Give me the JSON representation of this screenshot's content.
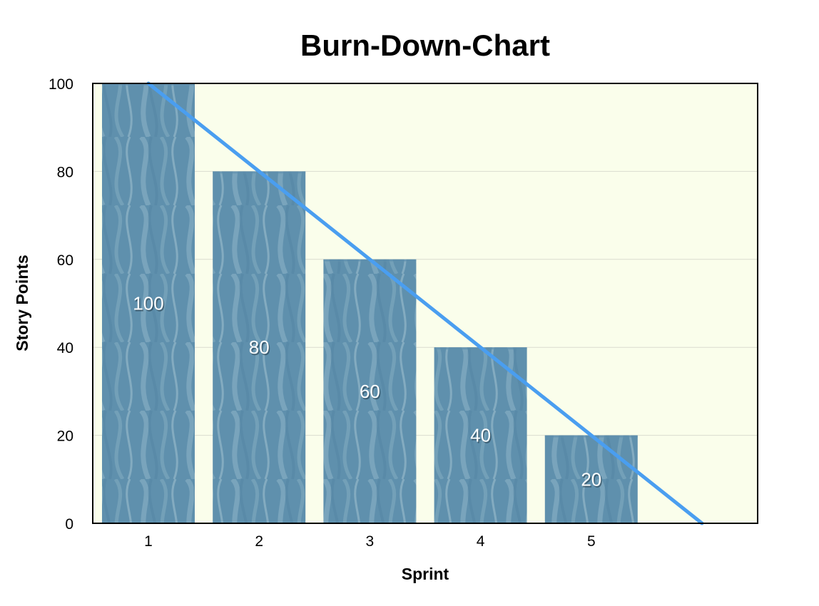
{
  "colors": {
    "plot_background": "#fafeeb",
    "bar_fill": "#5f90ad",
    "bar_texture": "#a9c9d6",
    "trend_line": "#4a9ef0",
    "grid": "#d9dccf",
    "axis": "#000000"
  },
  "chart_data": {
    "type": "bar",
    "title": "Burn-Down-Chart",
    "xlabel": "Sprint",
    "ylabel": "Story Points",
    "categories": [
      "1",
      "2",
      "3",
      "4",
      "5"
    ],
    "values": [
      100,
      80,
      60,
      40,
      20
    ],
    "data_labels": [
      "100",
      "80",
      "60",
      "40",
      "20"
    ],
    "ylim": [
      0,
      100
    ],
    "yticks": [
      "0",
      "20",
      "40",
      "60",
      "80",
      "100"
    ],
    "grid": true,
    "legend": "none",
    "trend_line": {
      "x": [
        1,
        6
      ],
      "y": [
        100,
        0
      ]
    }
  }
}
